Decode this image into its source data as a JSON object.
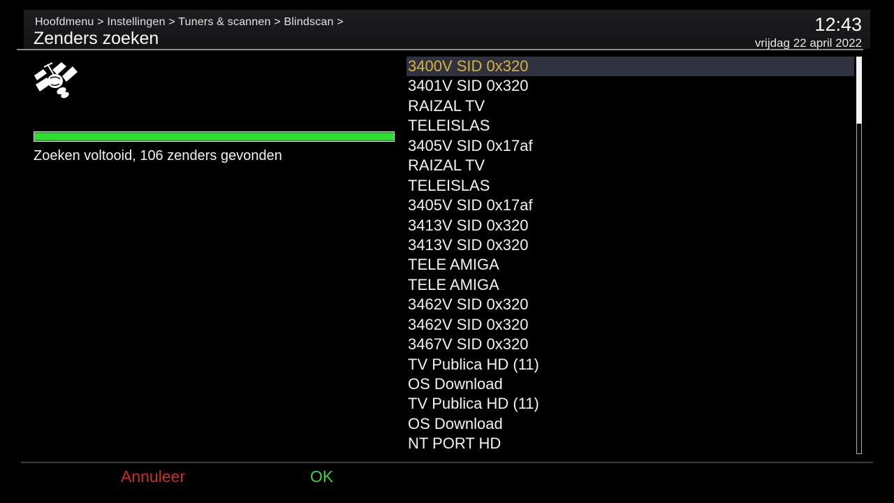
{
  "header": {
    "breadcrumb": "Hoofdmenu > Instellingen > Tuners & scannen > Blindscan >",
    "title": "Zenders zoeken",
    "time": "12:43",
    "date": "vrijdag 22 april 2022"
  },
  "scan": {
    "progress_percent": 100,
    "status": "Zoeken voltooid, 106 zenders gevonden",
    "channels_found": 106,
    "icon": "satellite-icon"
  },
  "channel_list": {
    "selected_index": 0,
    "items": [
      "3400V SID 0x320",
      "3401V SID 0x320",
      "RAIZAL TV",
      "TELEISLAS",
      "3405V SID 0x17af",
      "RAIZAL TV",
      "TELEISLAS",
      "3405V SID 0x17af",
      "3413V SID 0x320",
      "3413V SID 0x320",
      "TELE AMIGA",
      "TELE AMIGA",
      "3462V SID 0x320",
      "3462V SID 0x320",
      "3467V SID 0x320",
      "TV Publica HD (11)",
      "OS Download",
      "TV Publica HD (11)",
      "OS Download",
      "NT PORT HD"
    ]
  },
  "footer": {
    "cancel_label": "Annuleer",
    "ok_label": "OK"
  },
  "colors": {
    "selected_bg": "#30323f",
    "selected_text": "#d6b43c",
    "progress_green": "#2ee02e",
    "cancel_red": "#cf2b2b",
    "ok_green": "#3fd13f"
  }
}
